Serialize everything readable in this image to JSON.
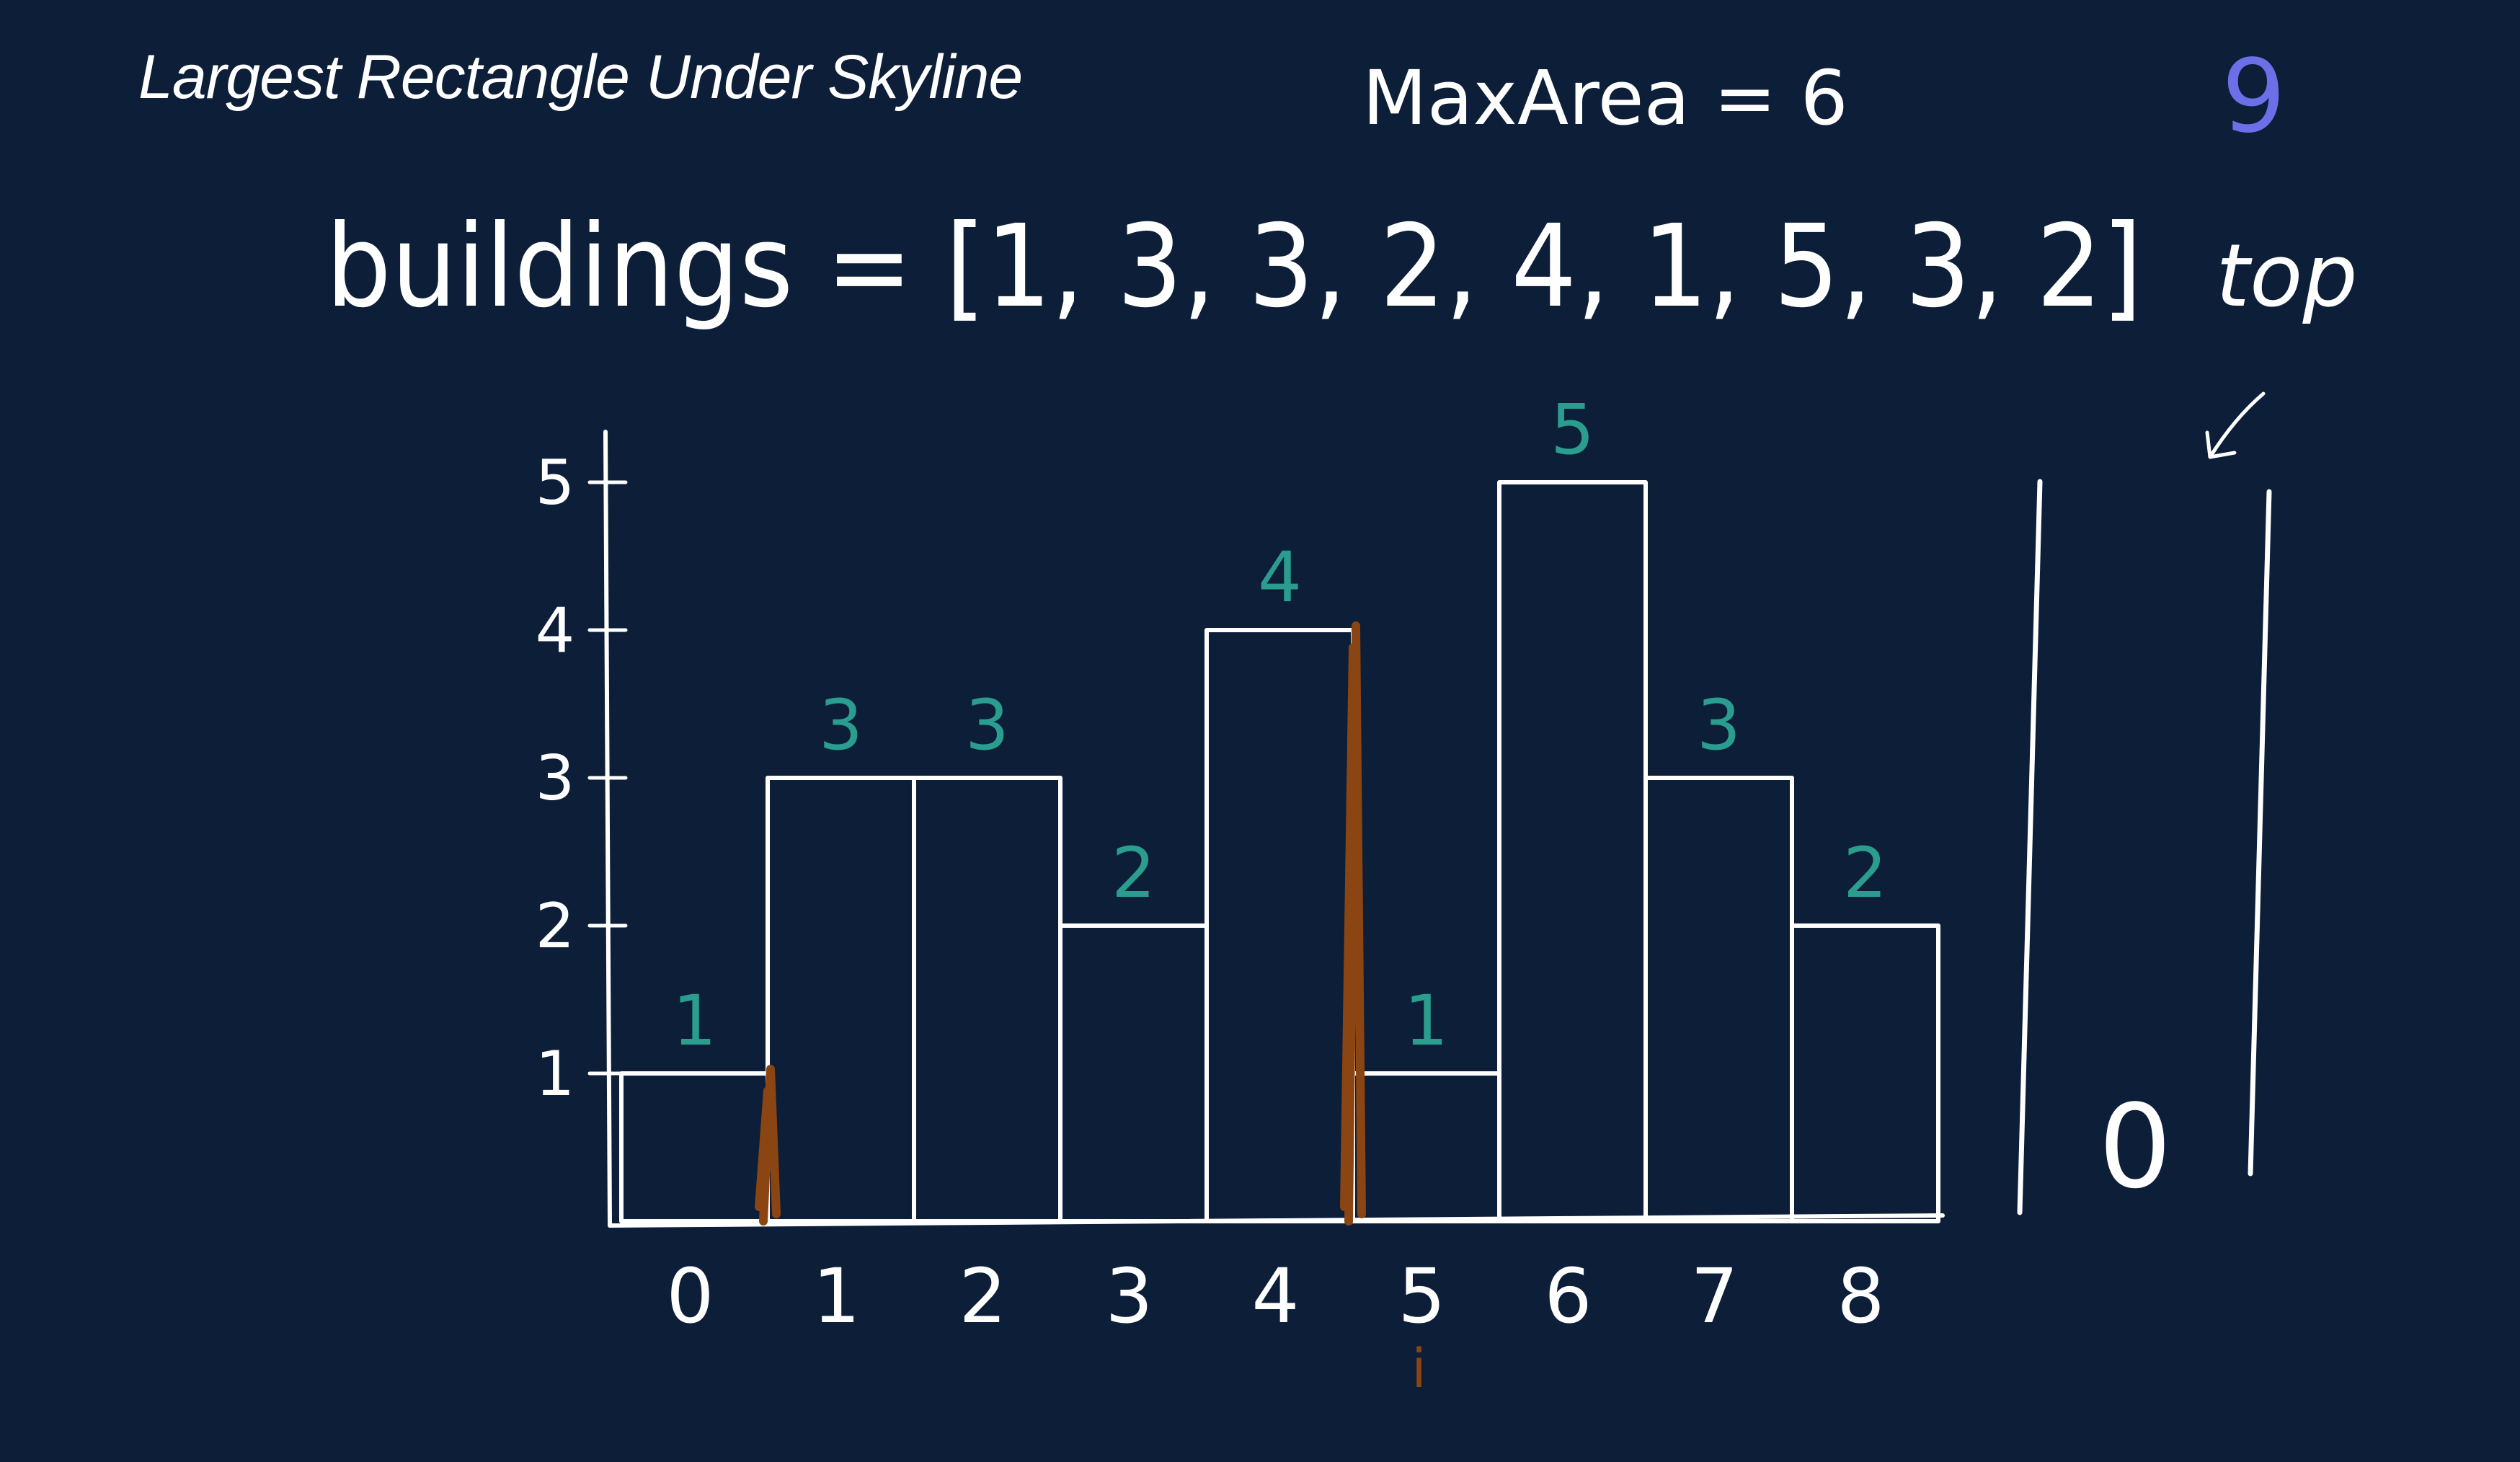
{
  "title": "Largest Rectangle Under Skyline",
  "max_area_text": "MaxArea = 6",
  "corner_value": "9",
  "buildings_label": "buildings = [1, 3, 3, 2, 4, 1, 5, 3, 2]",
  "stack": {
    "top_label": "top",
    "values": [
      "0"
    ]
  },
  "pointer_label": "i",
  "colors": {
    "background": "#0c1e38",
    "ink": "#ffffff",
    "value_labels": "#2a9d8f",
    "markers": "#8b4513",
    "corner_value": "#6b6fe8"
  },
  "chart_data": {
    "type": "bar",
    "categories": [
      "0",
      "1",
      "2",
      "3",
      "4",
      "5",
      "6",
      "7",
      "8"
    ],
    "values": [
      1,
      3,
      3,
      2,
      4,
      1,
      5,
      3,
      2
    ],
    "y_ticks": [
      "1",
      "2",
      "3",
      "4",
      "5"
    ],
    "ylim": [
      0,
      5
    ],
    "grid": false,
    "value_labels": [
      "1",
      "3",
      "3",
      "2",
      "4",
      "1",
      "5",
      "3",
      "2"
    ],
    "marked_boundaries_after_index": [
      0,
      4
    ],
    "pointer_index": 5
  }
}
